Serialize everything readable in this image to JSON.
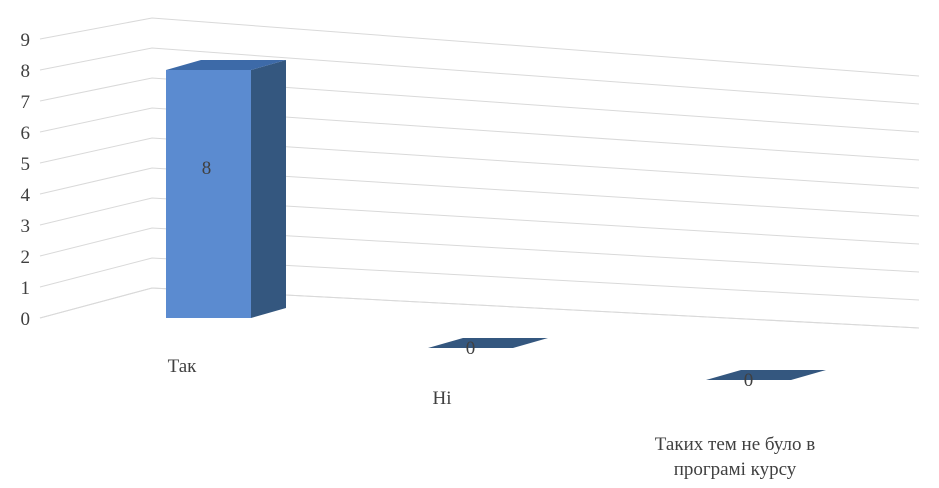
{
  "chart_data": {
    "type": "bar",
    "title": "",
    "xlabel": "",
    "ylabel": "",
    "categories": [
      "Так",
      "Ні",
      "Таких тем не було в програмі курсу"
    ],
    "category_lines": [
      [
        "Так"
      ],
      [
        "Ні"
      ],
      [
        "Таких тем не було в",
        "програмі курсу"
      ]
    ],
    "values": [
      8,
      0,
      0
    ],
    "data_labels": [
      "8",
      "0",
      "0"
    ],
    "ylim": [
      0,
      9
    ],
    "yticks": [
      0,
      1,
      2,
      3,
      4,
      5,
      6,
      7,
      8,
      9
    ],
    "grid": true,
    "legend": "none",
    "style": "3d-column",
    "colors": {
      "front": "#5b8bd0",
      "side": "#34577f",
      "top": "#3d6aa8",
      "grid": "#d9d9d9",
      "text": "#404040"
    }
  }
}
